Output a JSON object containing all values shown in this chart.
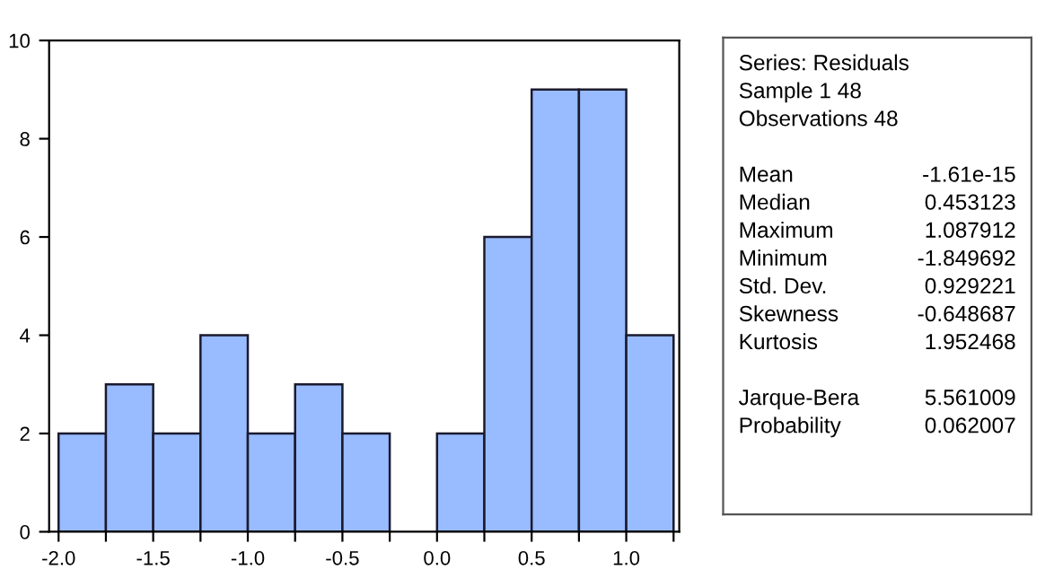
{
  "chart_data": [
    {
      "type": "histogram",
      "bins": [
        -2.0,
        -1.75,
        -1.5,
        -1.25,
        -1.0,
        -0.75,
        -0.5,
        -0.25,
        0.0,
        0.25,
        0.5,
        0.75,
        1.0,
        1.25
      ],
      "values": [
        2,
        3,
        2,
        4,
        2,
        3,
        2,
        0,
        2,
        6,
        9,
        9,
        4
      ],
      "color": "#99bbff",
      "xlim": [
        -2.05,
        1.28
      ],
      "xticks": [
        {
          "value": -2.0,
          "label": "-2.0"
        },
        {
          "value": -1.75,
          "label": null
        },
        {
          "value": -1.5,
          "label": "-1.5"
        },
        {
          "value": -1.25,
          "label": null
        },
        {
          "value": -1.0,
          "label": "-1.0"
        },
        {
          "value": -0.75,
          "label": null
        },
        {
          "value": -0.5,
          "label": "-0.5"
        },
        {
          "value": -0.25,
          "label": null
        },
        {
          "value": 0.0,
          "label": "0.0"
        },
        {
          "value": 0.25,
          "label": null
        },
        {
          "value": 0.5,
          "label": "0.5"
        },
        {
          "value": 0.75,
          "label": null
        },
        {
          "value": 1.0,
          "label": "1.0"
        },
        {
          "value": 1.25,
          "label": null
        }
      ],
      "ylim": [
        0,
        10
      ],
      "yticks": [
        0,
        2,
        4,
        6,
        8,
        10
      ],
      "grid": false
    },
    {
      "type": "other",
      "annotations": [
        "Series: Residuals",
        "Sample 1 48",
        "Observations 48"
      ],
      "categories": [
        null,
        "Mean",
        "Median",
        "Maximum",
        "Minimum",
        "Std. Dev.",
        "Skewness",
        "Kurtosis",
        null,
        "Jarque-Bera",
        "Probability"
      ],
      "value_labels": [
        null,
        "-1.61e-15",
        "0.453123",
        "1.087912",
        "-1.849692",
        "0.929221",
        "-0.648687",
        "1.952468",
        null,
        "5.561009",
        "0.062007"
      ]
    }
  ]
}
